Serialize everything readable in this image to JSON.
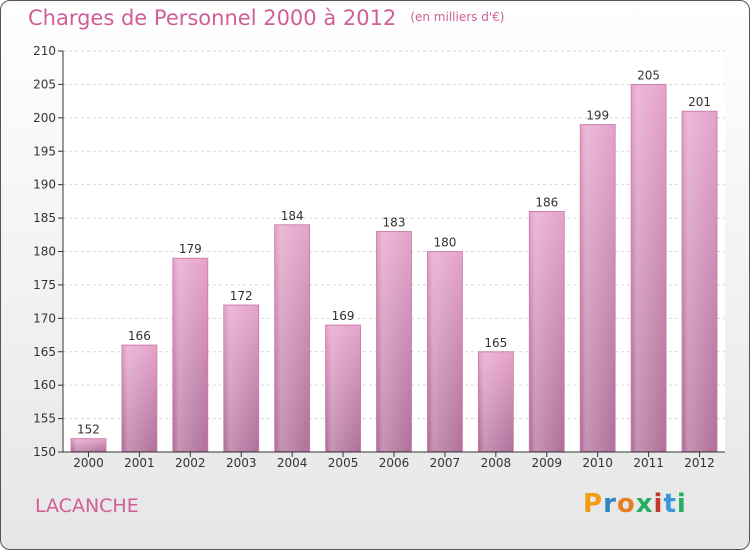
{
  "header": {
    "title": "Charges de Personnel 2000 à 2012",
    "subtitle": "(en milliers d'€)"
  },
  "footer": {
    "city": "LACANCHE"
  },
  "logo": {
    "letters": [
      "P",
      "r",
      "o",
      "x",
      "i",
      "t",
      "i"
    ],
    "colors": [
      "#f39c12",
      "#2e86c1",
      "#e67e22",
      "#27ae60",
      "#c0392b",
      "#3498db",
      "#27ae60"
    ]
  },
  "chart_data": {
    "type": "bar",
    "title": "Charges de Personnel 2000 à 2012",
    "subtitle": "(en milliers d'€)",
    "categories": [
      "2000",
      "2001",
      "2002",
      "2003",
      "2004",
      "2005",
      "2006",
      "2007",
      "2008",
      "2009",
      "2010",
      "2011",
      "2012"
    ],
    "values": [
      152,
      166,
      179,
      172,
      184,
      169,
      183,
      180,
      165,
      186,
      199,
      205,
      201
    ],
    "ylim": [
      150,
      210
    ],
    "yticks": [
      150,
      155,
      160,
      165,
      170,
      175,
      180,
      185,
      190,
      195,
      200,
      205,
      210
    ],
    "grid": true,
    "bar_color": "#d783b2"
  }
}
